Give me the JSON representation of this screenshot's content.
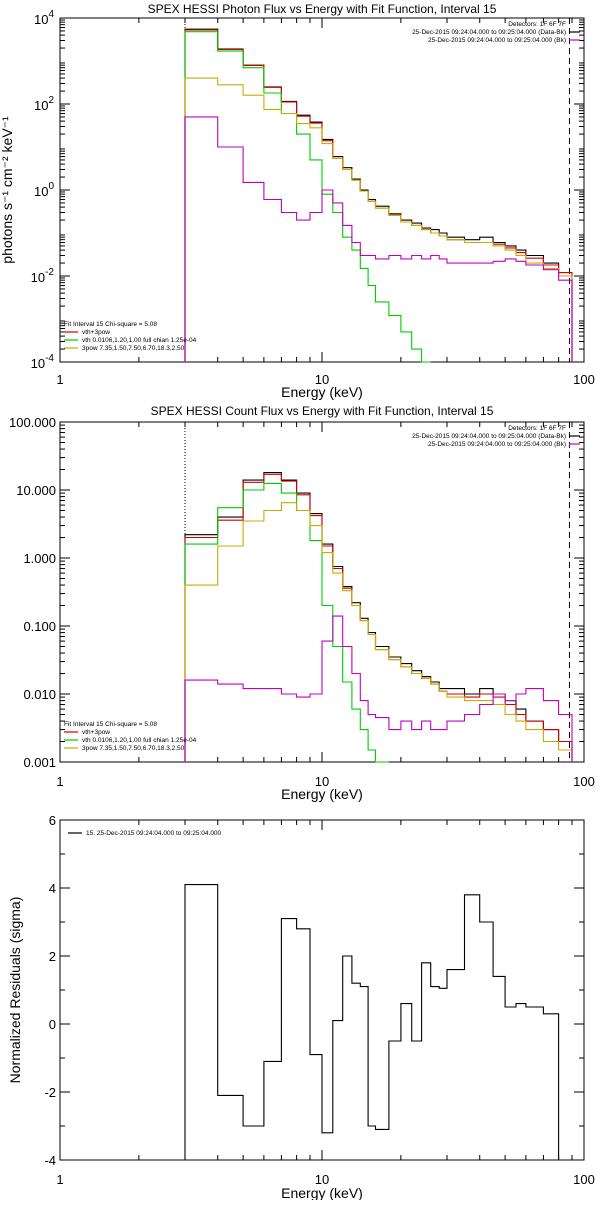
{
  "chart_data": [
    {
      "type": "line",
      "title": "SPEX HESSI Photon Flux vs Energy with Fit Function, Interval 15",
      "xlabel": "Energy (keV)",
      "ylabel": "photons s⁻¹ cm⁻² keV⁻¹",
      "xscale": "log",
      "yscale": "log",
      "xlim": [
        1,
        100
      ],
      "ylim": [
        0.0001,
        10000
      ],
      "xticks": [
        "1",
        "10",
        "100"
      ],
      "yticks": [
        {
          "base": "10",
          "exp": "4",
          "value": 10000
        },
        {
          "base": "10",
          "exp": "2",
          "value": 100
        },
        {
          "base": "10",
          "exp": "0",
          "value": 1
        },
        {
          "base": "10",
          "exp": "-2",
          "value": 0.01
        },
        {
          "base": "10",
          "exp": "-4",
          "value": 0.0001
        }
      ],
      "header_right": [
        "Detectors: 1F 6F 7F",
        "25-Dec-2015 09:24:04.000 to 09:25:04.000 (Data-Bk)",
        "25-Dec-2015 09:24:04.000 to 09:25:04.000 (Bk)"
      ],
      "header_colors": [
        "#000000",
        "#c000c0"
      ],
      "legend_lines": [
        "Fit Interval 15   Chi-square = 5.08",
        "vth+3pow",
        "vth 0.0106,1.20,1.00  full chian 1.25e-04",
        "3pow 7.35,1.50,7.50,6.70,18.3,2.50"
      ],
      "legend_colors": [
        "#000000",
        "#d00000",
        "#00cc00",
        "#ccaa00"
      ],
      "threshold_x": 3,
      "dashed_x": 88,
      "edges": [
        3,
        4,
        5,
        6,
        7,
        8,
        9,
        10,
        11,
        12,
        13,
        14,
        15,
        16,
        18,
        20,
        22,
        24,
        26,
        28,
        30,
        35,
        40,
        45,
        50,
        55,
        60,
        70,
        80,
        90
      ],
      "series": [
        {
          "name": "",
          "color": "#000000",
          "values": [
            5500,
            1900,
            800,
            250,
            115,
            55,
            38,
            15,
            6,
            3.3,
            1.8,
            1.0,
            0.6,
            0.42,
            0.28,
            0.2,
            0.17,
            0.13,
            0.12,
            0.1,
            0.08,
            0.07,
            0.08,
            0.06,
            0.05,
            0.04,
            0.03,
            0.02,
            0.01
          ]
        },
        {
          "name": "",
          "color": "#d00000",
          "values": [
            5300,
            1850,
            790,
            245,
            112,
            52,
            36,
            14,
            5.5,
            3.0,
            1.7,
            0.95,
            0.55,
            0.38,
            0.26,
            0.18,
            0.15,
            0.12,
            0.1,
            0.085,
            0.07,
            0.06,
            0.06,
            0.055,
            0.045,
            0.035,
            0.026,
            0.018,
            0.012
          ]
        },
        {
          "name": "",
          "color": "#00cc00",
          "values": [
            4800,
            1700,
            700,
            180,
            60,
            20,
            5,
            0.8,
            0.3,
            0.08,
            0.04,
            0.015,
            0.006,
            0.0025,
            0.0012,
            0.0005,
            0.0002,
            0.0001
          ]
        },
        {
          "name": "",
          "color": "#ccaa00",
          "values": [
            400,
            280,
            160,
            75,
            60,
            35,
            28,
            12,
            5.5,
            3.0,
            1.7,
            0.95,
            0.55,
            0.38,
            0.26,
            0.18,
            0.15,
            0.12,
            0.1,
            0.085,
            0.07,
            0.06,
            0.06,
            0.05,
            0.04,
            0.03,
            0.02,
            0.015,
            0.01
          ]
        },
        {
          "name": "",
          "color": "#c000c0",
          "values": [
            50,
            10,
            1.5,
            0.6,
            0.3,
            0.2,
            0.3,
            1.0,
            0.5,
            0.15,
            0.06,
            0.03,
            0.03,
            0.025,
            0.03,
            0.025,
            0.03,
            0.025,
            0.03,
            0.025,
            0.02,
            0.02,
            0.02,
            0.022,
            0.025,
            0.022,
            0.018,
            0.014,
            0.008
          ]
        }
      ]
    },
    {
      "type": "line",
      "title": "SPEX HESSI Count Flux vs Energy with Fit Function, Interval 15",
      "xlabel": "Energy (keV)",
      "ylabel": "",
      "xscale": "log",
      "yscale": "log",
      "xlim": [
        1,
        100
      ],
      "ylim": [
        0.001,
        100
      ],
      "xticks": [
        "1",
        "10",
        "100"
      ],
      "yticks": [
        {
          "label": "100.000",
          "value": 100
        },
        {
          "label": "10.000",
          "value": 10
        },
        {
          "label": "1.000",
          "value": 1
        },
        {
          "label": "0.100",
          "value": 0.1
        },
        {
          "label": "0.010",
          "value": 0.01
        },
        {
          "label": "0.001",
          "value": 0.001
        }
      ],
      "header_right": [
        "Detectors: 1F 6F 7F",
        "25-Dec-2015 09:24:04.000 to 09:25:04.000 (Data-Bk)",
        "25-Dec-2015 09:24:04.000 to 09:25:04.000 (Bk)"
      ],
      "header_colors": [
        "#000000",
        "#c000c0"
      ],
      "legend_lines": [
        "Fit Interval 15   Chi-square = 5.08",
        "vth+3pow",
        "vth 0.0106,1.20,1.00  full chian 1.25e-04",
        "3pow 7.35,1.50,7.50,6.70,18.3,2.50"
      ],
      "legend_colors": [
        "#000000",
        "#d00000",
        "#00cc00",
        "#ccaa00"
      ],
      "threshold_x": 3,
      "dashed_x": 88,
      "edges": [
        3,
        4,
        5,
        6,
        7,
        8,
        9,
        10,
        11,
        12,
        13,
        14,
        15,
        16,
        18,
        20,
        22,
        24,
        26,
        28,
        30,
        35,
        40,
        45,
        50,
        55,
        60,
        70,
        80,
        90
      ],
      "series": [
        {
          "name": "",
          "color": "#000000",
          "values": [
            2.2,
            4.0,
            14.0,
            18.0,
            14.0,
            9.0,
            4.5,
            1.6,
            0.75,
            0.38,
            0.22,
            0.13,
            0.08,
            0.05,
            0.035,
            0.028,
            0.022,
            0.018,
            0.015,
            0.012,
            0.012,
            0.01,
            0.012,
            0.01,
            0.008,
            0.006,
            0.004,
            0.003,
            0.002
          ]
        },
        {
          "name": "",
          "color": "#d00000",
          "values": [
            2.0,
            3.6,
            13.0,
            17.0,
            13.5,
            8.5,
            4.2,
            1.5,
            0.7,
            0.36,
            0.2,
            0.12,
            0.075,
            0.045,
            0.032,
            0.025,
            0.02,
            0.017,
            0.014,
            0.011,
            0.01,
            0.009,
            0.01,
            0.009,
            0.007,
            0.005,
            0.004,
            0.003,
            0.002
          ]
        },
        {
          "name": "",
          "color": "#00cc00",
          "values": [
            1.6,
            5.5,
            10.0,
            12.5,
            9.0,
            5.0,
            1.8,
            0.2,
            0.05,
            0.015,
            0.006,
            0.003,
            0.0015,
            0.001
          ]
        },
        {
          "name": "",
          "color": "#ccaa00",
          "values": [
            0.4,
            1.5,
            3.5,
            5.0,
            6.5,
            5.0,
            3.0,
            1.2,
            0.6,
            0.33,
            0.2,
            0.12,
            0.075,
            0.045,
            0.032,
            0.025,
            0.02,
            0.017,
            0.014,
            0.011,
            0.009,
            0.008,
            0.008,
            0.007,
            0.005,
            0.004,
            0.003,
            0.002,
            0.0015
          ]
        },
        {
          "name": "",
          "color": "#c000c0",
          "values": [
            0.016,
            0.014,
            0.012,
            0.012,
            0.01,
            0.009,
            0.01,
            0.06,
            0.14,
            0.05,
            0.02,
            0.008,
            0.005,
            0.0045,
            0.003,
            0.004,
            0.003,
            0.004,
            0.003,
            0.003,
            0.004,
            0.005,
            0.007,
            0.01,
            0.008,
            0.01,
            0.012,
            0.008,
            0.005
          ]
        }
      ]
    },
    {
      "type": "line",
      "title": "",
      "xlabel": "Energy (keV)",
      "ylabel": "Normalized Residuals (sigma)",
      "xscale": "log",
      "yscale": "linear",
      "xlim": [
        1,
        100
      ],
      "ylim": [
        -4,
        6
      ],
      "xticks": [
        "1",
        "10",
        "100"
      ],
      "yticks": [
        {
          "label": "6",
          "value": 6
        },
        {
          "label": "4",
          "value": 4
        },
        {
          "label": "2",
          "value": 2
        },
        {
          "label": "0",
          "value": 0
        },
        {
          "label": "-2",
          "value": -2
        },
        {
          "label": "-4",
          "value": -4
        }
      ],
      "legend_lines": [
        "15. 25-Dec-2015 09:24:04.000 to 09:25:04.000"
      ],
      "legend_colors": [
        "#000000"
      ],
      "edges": [
        3,
        4,
        5,
        6,
        7,
        8,
        9,
        10,
        11,
        12,
        13,
        14,
        15,
        16,
        18,
        20,
        22,
        24,
        26,
        28,
        30,
        35,
        40,
        45,
        50,
        55,
        60,
        70,
        80,
        90
      ],
      "series": [
        {
          "name": "",
          "color": "#000000",
          "values": [
            4.1,
            -2.1,
            -3.0,
            -1.1,
            3.1,
            2.8,
            -0.9,
            -3.2,
            0.1,
            2.0,
            1.2,
            1.1,
            -3.0,
            -3.1,
            -0.5,
            0.6,
            -0.5,
            1.8,
            1.1,
            1.05,
            1.6,
            3.8,
            3.0,
            1.4,
            0.5,
            0.6,
            0.5,
            0.3,
            -4.0
          ]
        }
      ]
    }
  ]
}
